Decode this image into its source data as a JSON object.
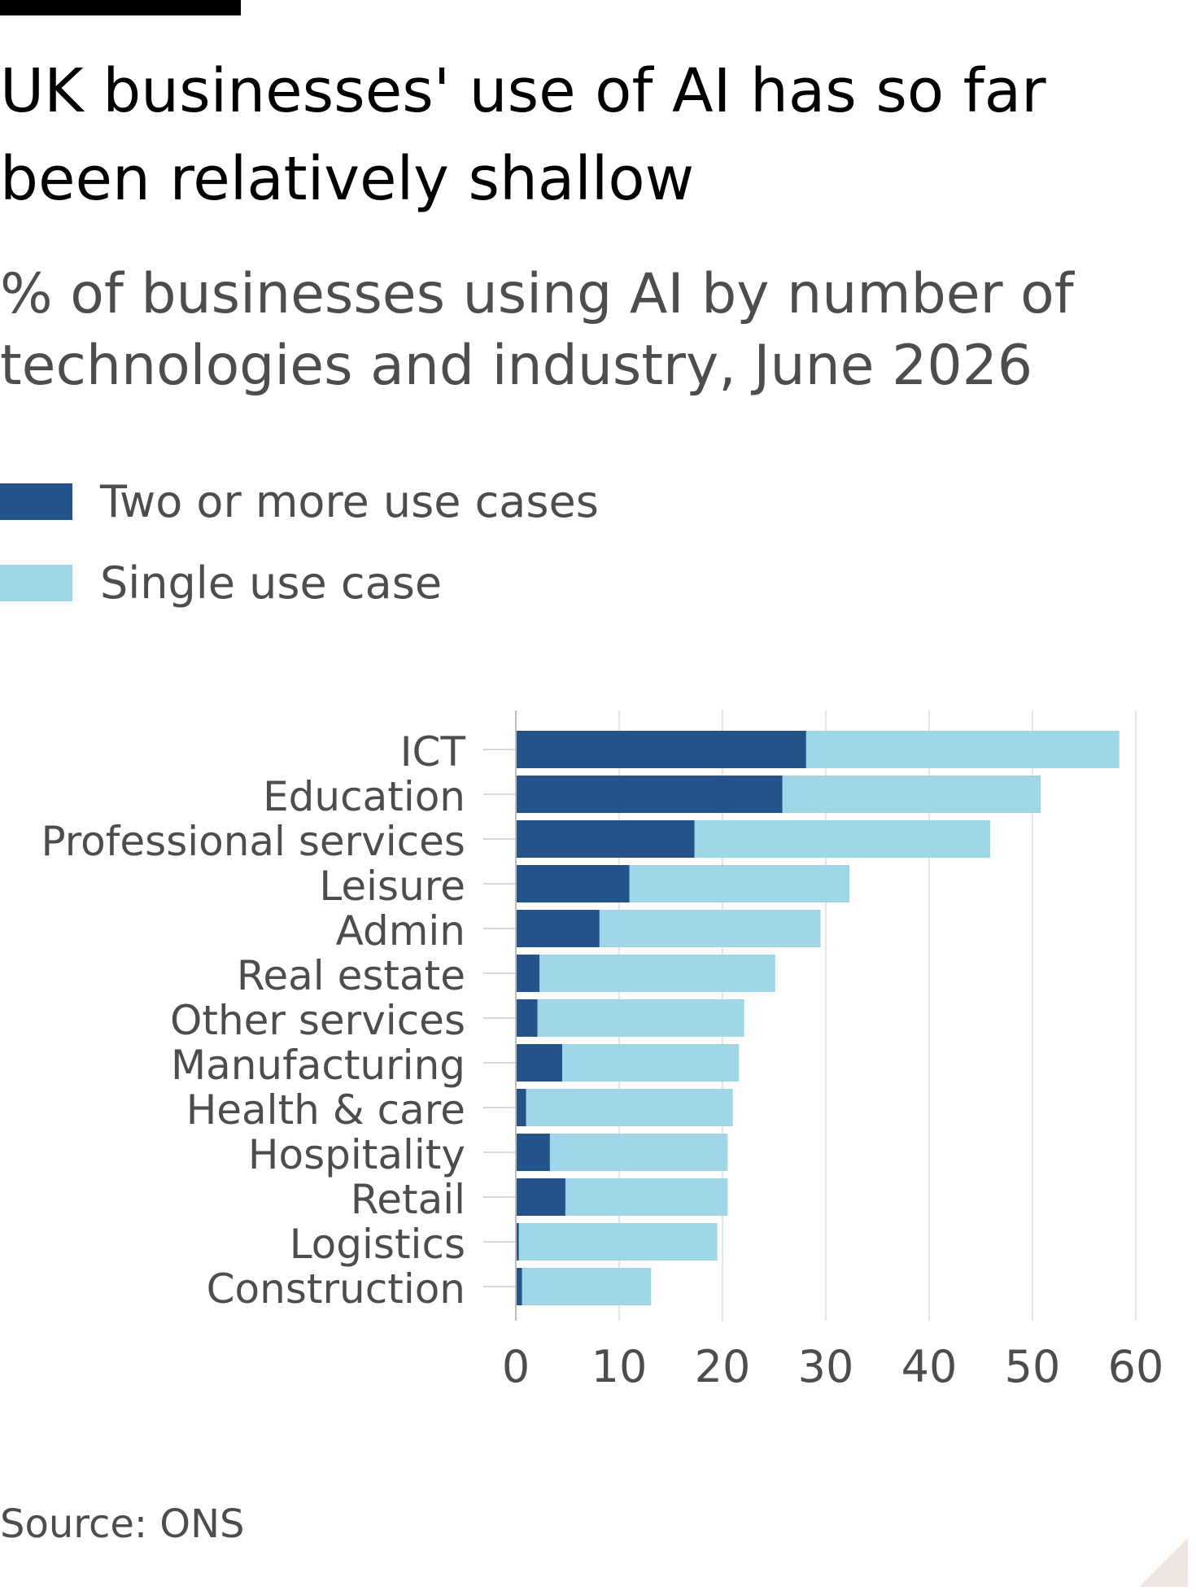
{
  "header": {
    "title": "UK businesses' use of AI has so far been relatively shallow",
    "subtitle": "% of businesses using AI by number of technologies and industry, June 2026"
  },
  "legend": [
    {
      "label": "Two or more use cases",
      "color": "#245289"
    },
    {
      "label": "Single use case",
      "color": "#9fd6e8"
    }
  ],
  "footer": {
    "source": "Source: ONS"
  },
  "chart_data": {
    "type": "bar",
    "orientation": "horizontal",
    "stacked": true,
    "categories": [
      "ICT",
      "Education",
      "Professional services",
      "Leisure",
      "Admin",
      "Real estate",
      "Other services",
      "Manufacturing",
      "Health & care",
      "Hospitality",
      "Retail",
      "Logistics",
      "Construction"
    ],
    "series": [
      {
        "name": "Two or more use cases",
        "color": "#245289",
        "values": [
          28.1,
          25.8,
          17.3,
          11.0,
          8.1,
          2.3,
          2.1,
          4.5,
          1.0,
          3.3,
          4.8,
          0.3,
          0.6
        ]
      },
      {
        "name": "Single use case",
        "color": "#9fd6e8",
        "values": [
          30.3,
          25.0,
          28.6,
          21.3,
          21.4,
          22.8,
          20.0,
          17.1,
          20.0,
          17.2,
          15.7,
          19.2,
          12.5
        ]
      }
    ],
    "xlim": [
      0,
      60
    ],
    "xticks": [
      0,
      10,
      20,
      30,
      40,
      50,
      60
    ],
    "grid": true,
    "legend_position": "top-left"
  }
}
